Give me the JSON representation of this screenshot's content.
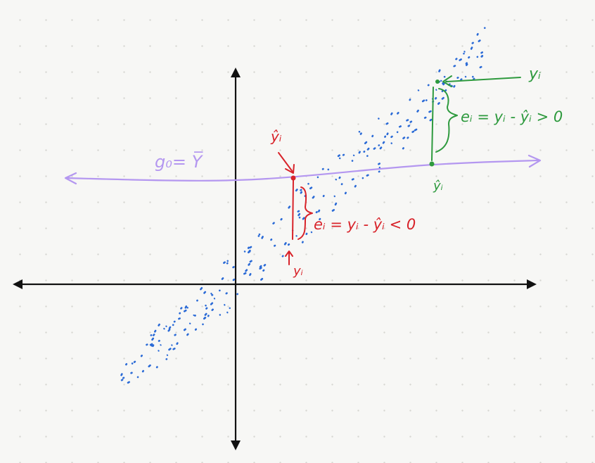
{
  "labels": {
    "mean_line": "g₀= Y̅",
    "red_yhat": "ŷᵢ",
    "red_residual": "eᵢ = yᵢ - ŷᵢ < 0",
    "red_y": "yᵢ",
    "green_y": "yᵢ",
    "green_residual": "eᵢ = yᵢ - ŷᵢ > 0",
    "green_yhat": "ŷᵢ"
  },
  "colors": {
    "axes": "#111111",
    "mean_line": "#b497f0",
    "negative_residual": "#d8232a",
    "positive_residual": "#2e9a3e",
    "points": "#2a6ad6"
  }
}
